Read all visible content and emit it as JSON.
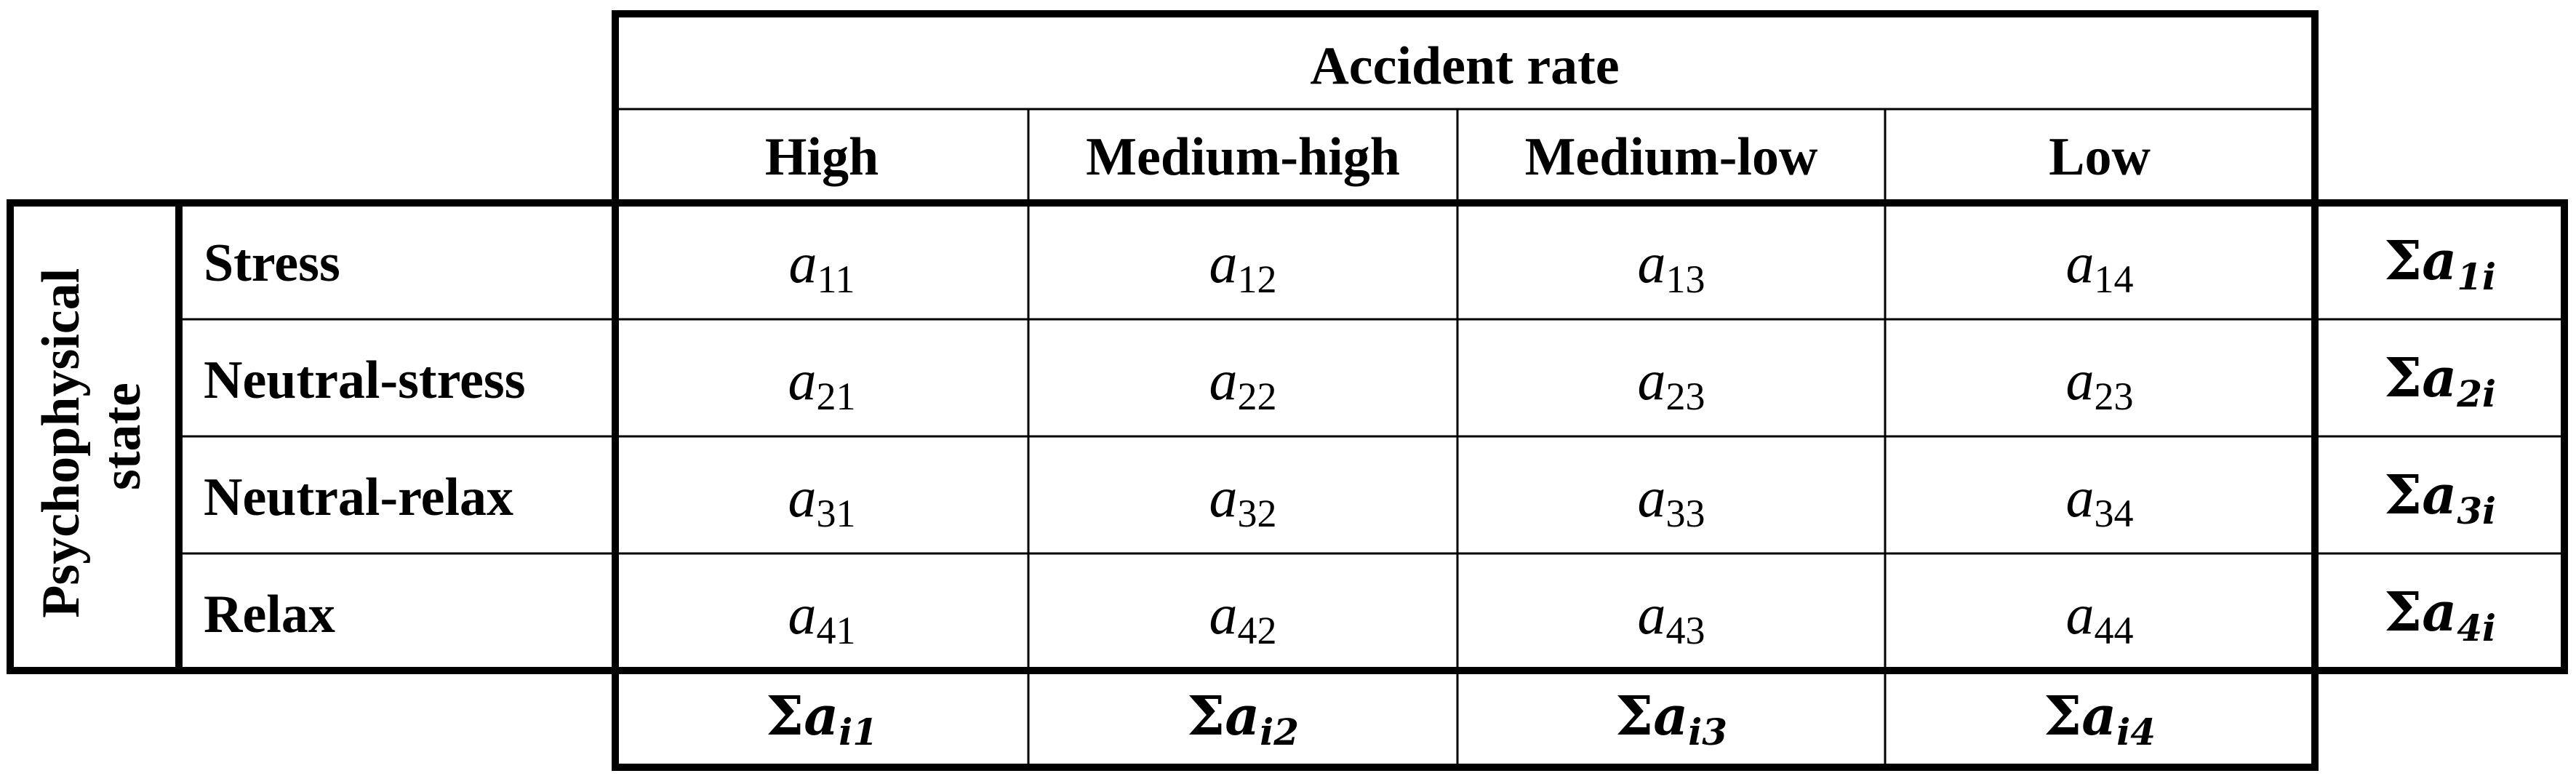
{
  "table": {
    "column_group_header": "Accident rate",
    "row_group_header": "Psychophysical state",
    "columns": [
      "High",
      "Medium-high",
      "Medium-low",
      "Low"
    ],
    "rows": [
      {
        "label": "Stress",
        "cells": [
          {
            "base": "a",
            "sub": "11"
          },
          {
            "base": "a",
            "sub": "12"
          },
          {
            "base": "a",
            "sub": "13"
          },
          {
            "base": "a",
            "sub": "14"
          }
        ],
        "row_sum": {
          "sigma": "Σ",
          "base": "a",
          "sub": "1i"
        }
      },
      {
        "label": "Neutral-stress",
        "cells": [
          {
            "base": "a",
            "sub": "21"
          },
          {
            "base": "a",
            "sub": "22"
          },
          {
            "base": "a",
            "sub": "23"
          },
          {
            "base": "a",
            "sub": "23"
          }
        ],
        "row_sum": {
          "sigma": "Σ",
          "base": "a",
          "sub": "2i"
        }
      },
      {
        "label": "Neutral-relax",
        "cells": [
          {
            "base": "a",
            "sub": "31"
          },
          {
            "base": "a",
            "sub": "32"
          },
          {
            "base": "a",
            "sub": "33"
          },
          {
            "base": "a",
            "sub": "34"
          }
        ],
        "row_sum": {
          "sigma": "Σ",
          "base": "a",
          "sub": "3i"
        }
      },
      {
        "label": "Relax",
        "cells": [
          {
            "base": "a",
            "sub": "41"
          },
          {
            "base": "a",
            "sub": "42"
          },
          {
            "base": "a",
            "sub": "43"
          },
          {
            "base": "a",
            "sub": "44"
          }
        ],
        "row_sum": {
          "sigma": "Σ",
          "base": "a",
          "sub": "4i"
        }
      }
    ],
    "column_sums": [
      {
        "sigma": "Σ",
        "base": "a",
        "sub": "i1"
      },
      {
        "sigma": "Σ",
        "base": "a",
        "sub": "i2"
      },
      {
        "sigma": "Σ",
        "base": "a",
        "sub": "i3"
      },
      {
        "sigma": "Σ",
        "base": "a",
        "sub": "i4"
      }
    ]
  }
}
